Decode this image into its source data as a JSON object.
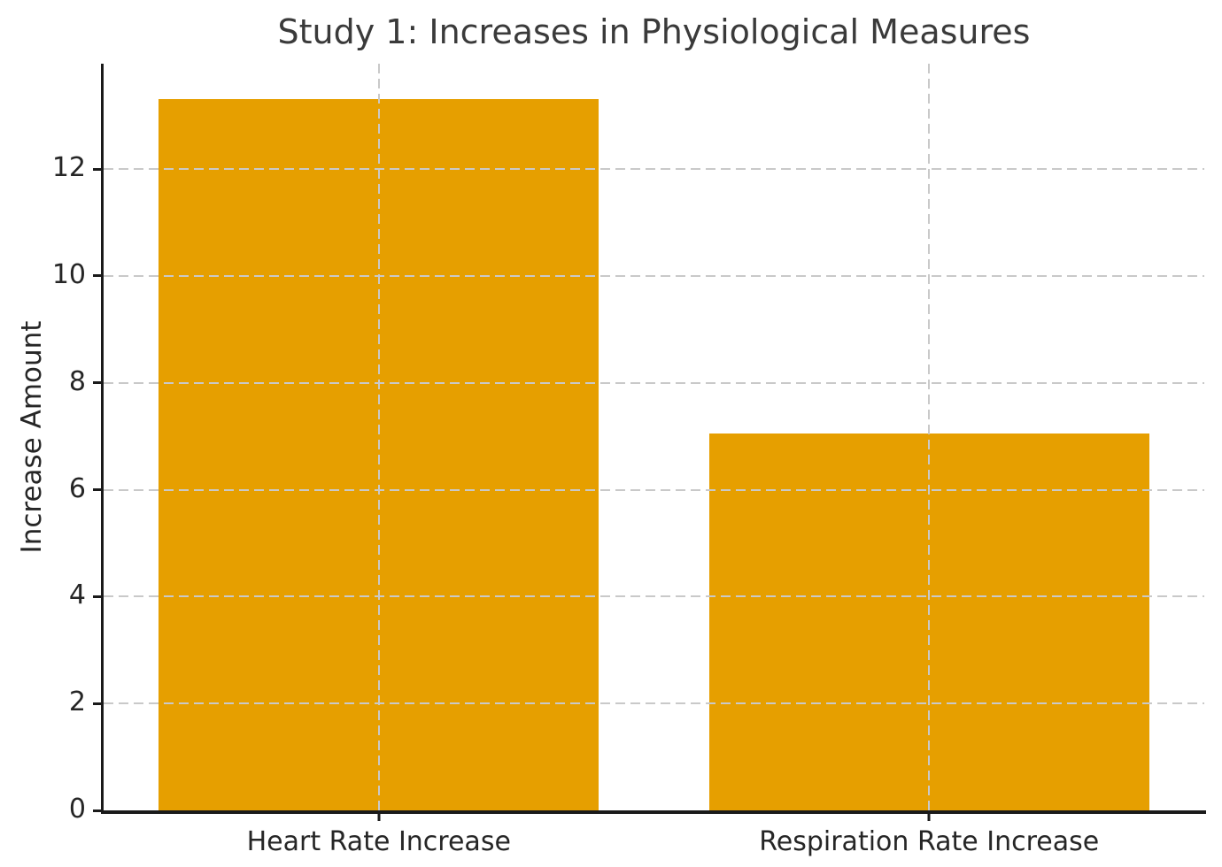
{
  "chart_data": {
    "type": "bar",
    "title": "Study 1: Increases in Physiological Measures",
    "xlabel": "",
    "ylabel": "Increase Amount",
    "categories": [
      "Heart Rate Increase",
      "Respiration Rate Increase"
    ],
    "values": [
      13.3,
      7.05
    ],
    "yticks": [
      0,
      2,
      4,
      6,
      8,
      10,
      12
    ],
    "ylim": [
      0,
      13.97
    ],
    "bar_width_fraction": 0.8,
    "grid": {
      "style": "dashed",
      "horizontal_at": [
        2,
        4,
        6,
        8,
        10,
        12
      ],
      "vertical_at_bar_centers": true,
      "drawn_above_bars": true
    },
    "legend": null
  },
  "colors": {
    "bar": "#E69F00",
    "grid": "#c9c9c9",
    "spine": "#1a1a1a",
    "tick_text": "#262626",
    "title_text": "#3a3a3a",
    "background": "#ffffff"
  }
}
